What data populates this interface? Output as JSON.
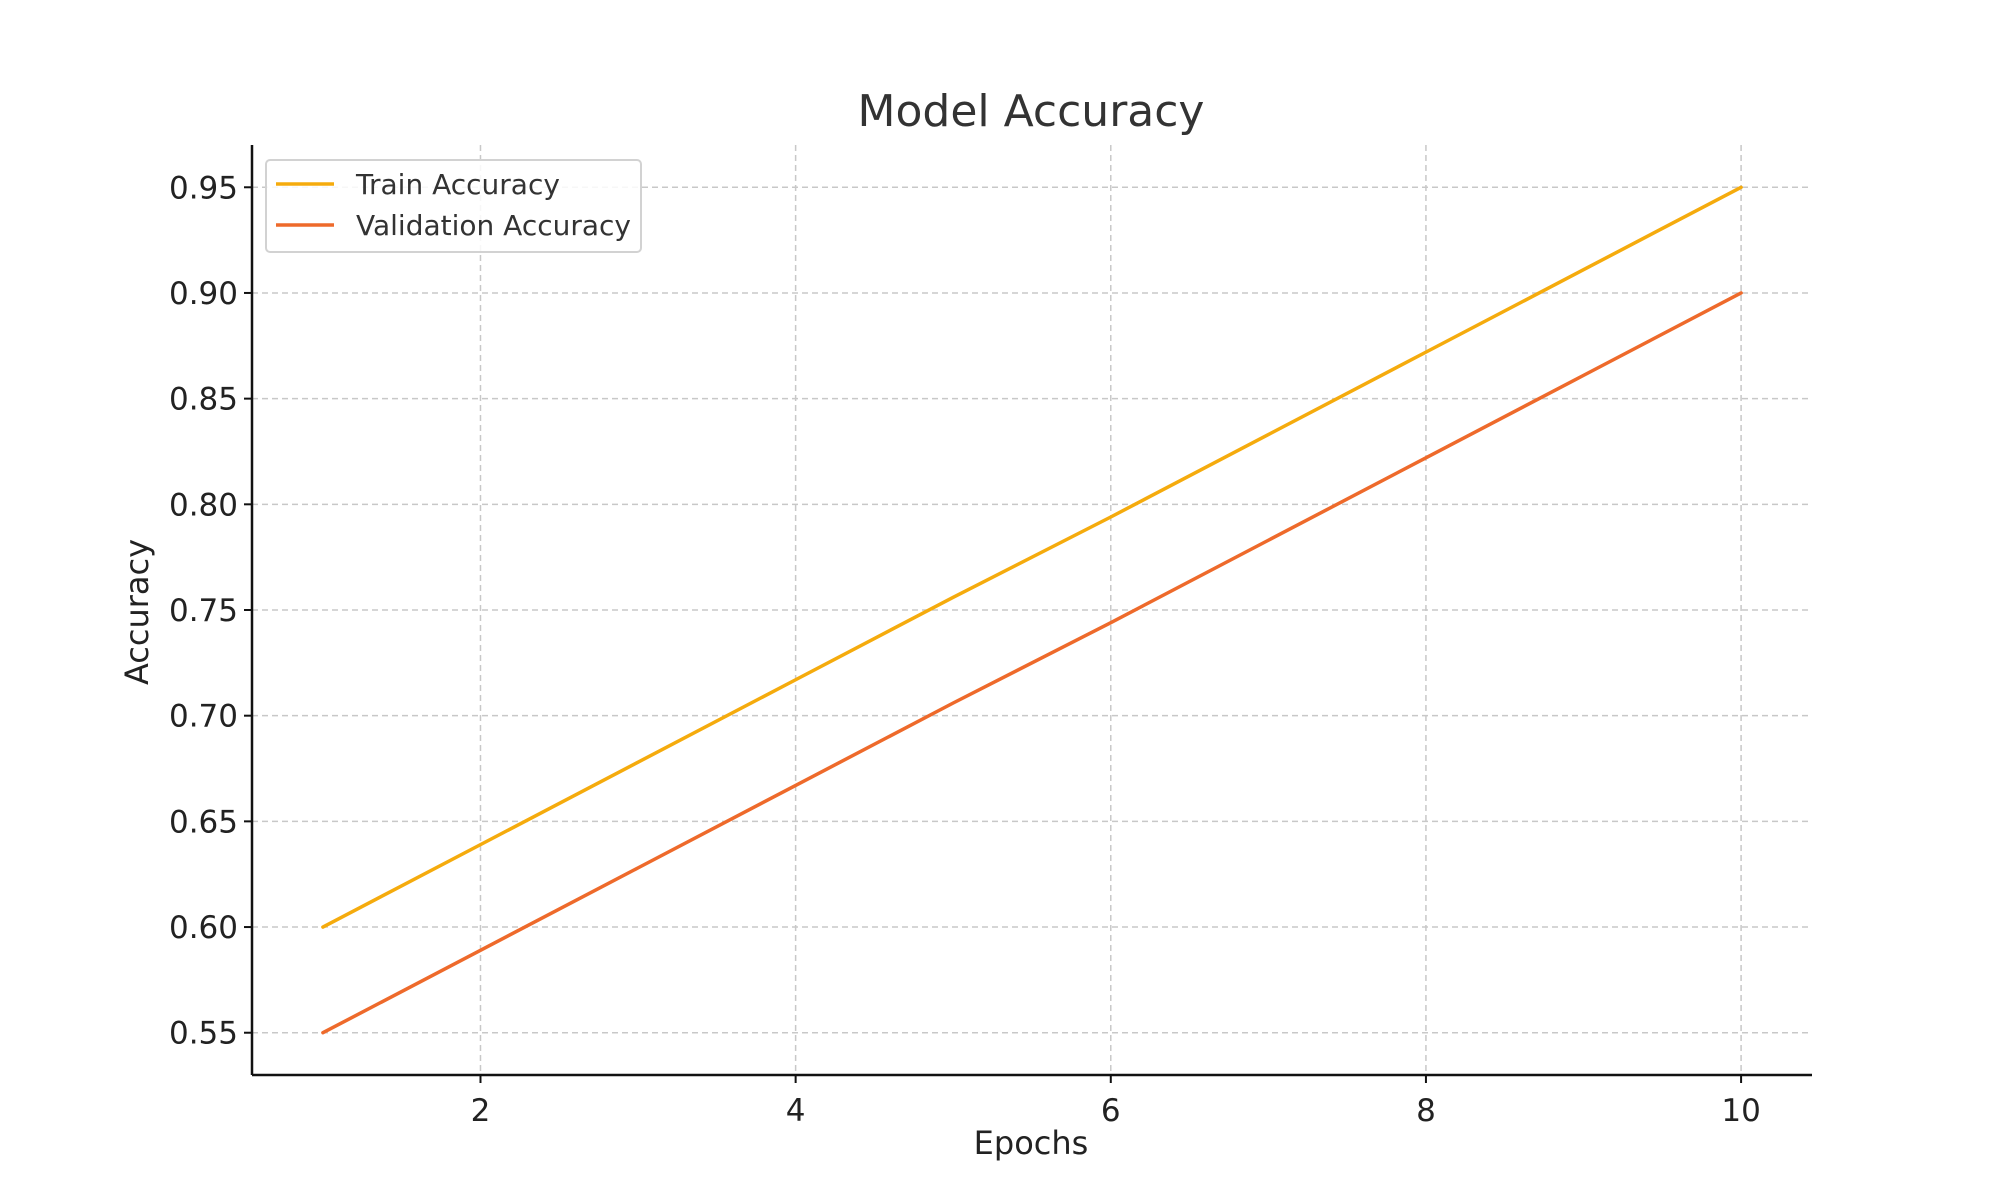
{
  "chart_data": {
    "type": "line",
    "title": "Model Accuracy",
    "xlabel": "Epochs",
    "ylabel": "Accuracy",
    "x": [
      1,
      2,
      3,
      4,
      5,
      6,
      7,
      8,
      9,
      10
    ],
    "xlim": [
      0.55,
      10.45
    ],
    "ylim": [
      0.53,
      0.97
    ],
    "xticks": [
      2,
      4,
      6,
      8,
      10
    ],
    "xtick_labels": [
      "2",
      "4",
      "6",
      "8",
      "10"
    ],
    "yticks": [
      0.55,
      0.6,
      0.65,
      0.7,
      0.75,
      0.8,
      0.85,
      0.9,
      0.95
    ],
    "ytick_labels": [
      "0.55",
      "0.60",
      "0.65",
      "0.70",
      "0.75",
      "0.80",
      "0.85",
      "0.90",
      "0.95"
    ],
    "grid": true,
    "legend_position": "top-left",
    "series": [
      {
        "name": "Train Accuracy",
        "color": "#f5ab0d",
        "values": [
          0.6,
          0.639,
          0.678,
          0.717,
          0.756,
          0.794,
          0.833,
          0.872,
          0.911,
          0.95
        ]
      },
      {
        "name": "Validation Accuracy",
        "color": "#ee6a2b",
        "values": [
          0.55,
          0.589,
          0.628,
          0.667,
          0.706,
          0.744,
          0.783,
          0.822,
          0.861,
          0.9
        ]
      }
    ]
  }
}
